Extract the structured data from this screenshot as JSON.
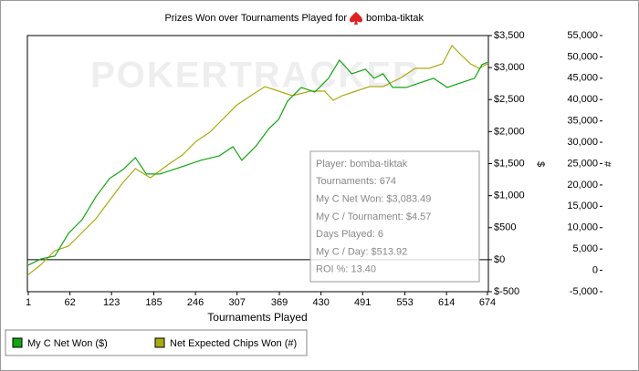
{
  "chart_data": {
    "type": "line",
    "title": "Prizes Won over Tournaments Played for",
    "title_player": "bomba-tiktak",
    "watermark": "POKERTRACKER",
    "x_label": "Tournaments Played",
    "y_label": "$",
    "y2_label": "#",
    "xlim": [
      1,
      674
    ],
    "xticks": [
      1,
      62,
      123,
      185,
      246,
      307,
      369,
      430,
      491,
      553,
      614,
      674
    ],
    "ylim": [
      -500,
      3500
    ],
    "yticks": [
      {
        "value": -500,
        "label": "$-500"
      },
      {
        "value": 0,
        "label": "$0"
      },
      {
        "value": 500,
        "label": "$500"
      },
      {
        "value": 1000,
        "label": "$1,000"
      },
      {
        "value": 1500,
        "label": "$1,500"
      },
      {
        "value": 2000,
        "label": "$2,000"
      },
      {
        "value": 2500,
        "label": "$2,500"
      },
      {
        "value": 3000,
        "label": "$3,000"
      },
      {
        "value": 3500,
        "label": "$3,500"
      }
    ],
    "y2lim": [
      -5000,
      55000
    ],
    "y2ticks": [
      {
        "value": -5000,
        "label": "-5,000"
      },
      0,
      {
        "value": 5000,
        "label": "5,000"
      },
      {
        "value": 10000,
        "label": "10,000"
      },
      {
        "value": 15000,
        "label": "15,000"
      },
      {
        "value": 20000,
        "label": "20,000"
      },
      {
        "value": 25000,
        "label": "25,000"
      },
      {
        "value": 30000,
        "label": "30,000"
      },
      {
        "value": 35000,
        "label": "35,000"
      },
      {
        "value": 40000,
        "label": "40,000"
      },
      {
        "value": 45000,
        "label": "45,000"
      },
      {
        "value": 50000,
        "label": "50,000"
      },
      {
        "value": 55000,
        "label": "55,000"
      }
    ],
    "grid": false,
    "series": [
      {
        "name": "My C Net Won ($)",
        "color": "#11a611",
        "axis": "y",
        "x": [
          1,
          20,
          40,
          60,
          80,
          100,
          120,
          140,
          158,
          174,
          194,
          214,
          234,
          254,
          281,
          301,
          314,
          334,
          354,
          368,
          381,
          401,
          421,
          441,
          457,
          475,
          495,
          508,
          521,
          535,
          555,
          575,
          595,
          615,
          635,
          655,
          666,
          674
        ],
        "values": [
          -85,
          14,
          57,
          413,
          626,
          982,
          1267,
          1409,
          1594,
          1338,
          1338,
          1409,
          1480,
          1552,
          1623,
          1765,
          1552,
          1765,
          2050,
          2192,
          2477,
          2690,
          2619,
          2833,
          3117,
          2904,
          2975,
          2833,
          2904,
          2690,
          2690,
          2762,
          2833,
          2690,
          2762,
          2833,
          3046,
          3083
        ]
      },
      {
        "name": "Net Expected Chips Won (#)",
        "color": "#aaaa11",
        "axis": "y2",
        "x": [
          1,
          20,
          40,
          60,
          80,
          100,
          120,
          140,
          158,
          180,
          207,
          227,
          247,
          267,
          287,
          307,
          327,
          348,
          368,
          388,
          414,
          435,
          448,
          461,
          481,
          501,
          521,
          548,
          568,
          588,
          608,
          622,
          635,
          649,
          662,
          674
        ],
        "values": [
          -1000,
          1405,
          4608,
          5675,
          8878,
          12080,
          16350,
          20620,
          23823,
          21688,
          24890,
          27025,
          30228,
          32363,
          35565,
          38768,
          40903,
          43038,
          41970,
          40903,
          41970,
          41970,
          39835,
          40903,
          41970,
          43038,
          43038,
          45173,
          47308,
          47308,
          48375,
          52645,
          50510,
          48375,
          47308,
          48375
        ]
      }
    ],
    "info_box": [
      "Player: bomba-tiktak",
      "Tournaments: 674",
      "My C Net Won: $3,083.49",
      "My C / Tournament: $4.57",
      "Days Played: 6",
      "My C / Day: $513.92",
      "ROI %: 13.40"
    ]
  }
}
